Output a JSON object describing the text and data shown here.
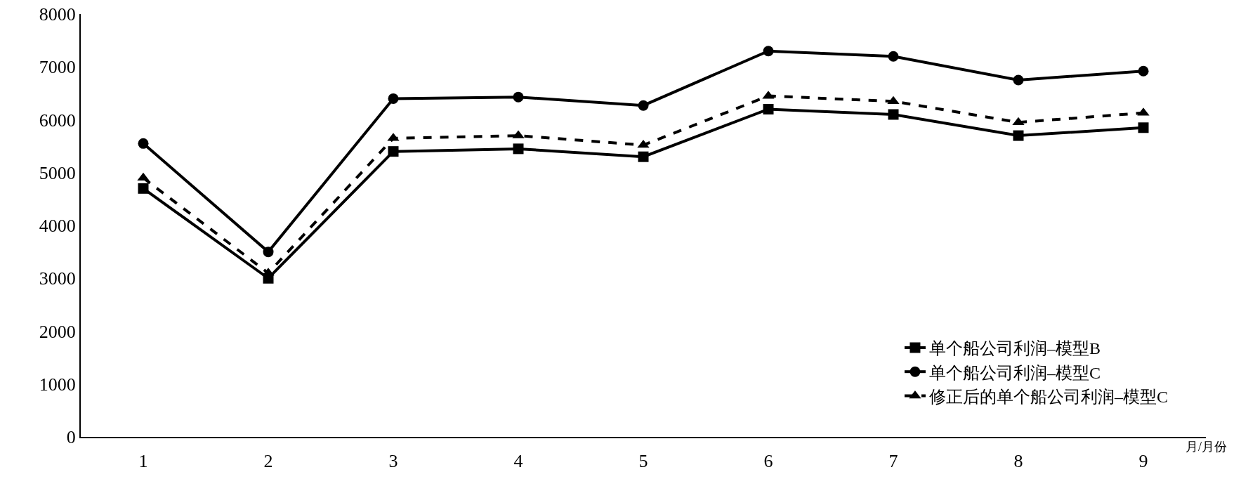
{
  "chart_data": {
    "type": "line",
    "xlabel": "月/月份",
    "categories": [
      "1",
      "2",
      "3",
      "4",
      "5",
      "6",
      "7",
      "8",
      "9"
    ],
    "ylim": [
      0,
      8000
    ],
    "yticks": [
      0,
      1000,
      2000,
      3000,
      4000,
      5000,
      6000,
      7000,
      8000
    ],
    "grid": false,
    "legend": "bottom right",
    "series": [
      {
        "name": "单个船公司利润–模型B",
        "color": "#000000",
        "marker": "square",
        "line_style": "solid",
        "values": [
          4700,
          3000,
          5400,
          5450,
          5300,
          6200,
          6100,
          5700,
          5850
        ]
      },
      {
        "name": "单个船公司利润–模型C",
        "color": "#000000",
        "marker": "circle",
        "line_style": "solid",
        "values": [
          5550,
          3500,
          6400,
          6430,
          6270,
          7300,
          7200,
          6750,
          6920
        ]
      },
      {
        "name": "修正后的单个船公司利润–模型C",
        "color": "#000000",
        "marker": "triangle",
        "line_style": "dashed",
        "values": [
          4900,
          3100,
          5650,
          5700,
          5520,
          6450,
          6350,
          5950,
          6130
        ]
      }
    ]
  }
}
